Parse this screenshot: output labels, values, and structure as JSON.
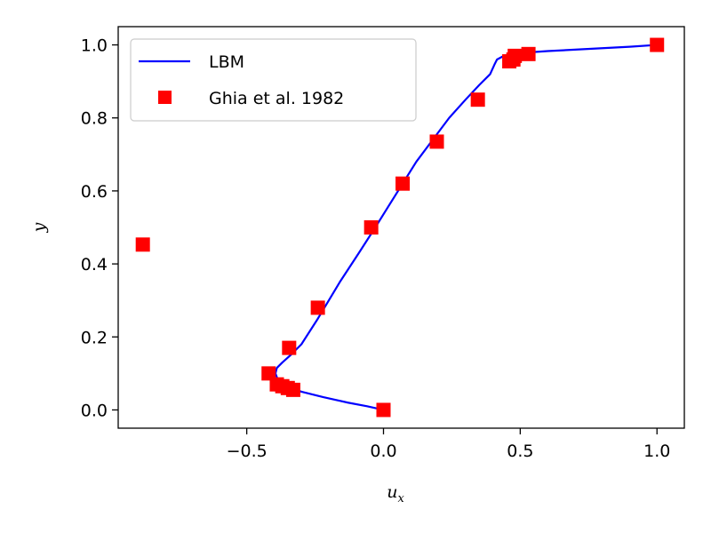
{
  "chart_data": {
    "type": "scatter",
    "xlabel": "u",
    "xlabel_sub": "x",
    "ylabel": "y",
    "xlim": [
      -0.97,
      1.1
    ],
    "ylim": [
      -0.05,
      1.05
    ],
    "xticks": [
      -0.5,
      0.0,
      0.5,
      1.0
    ],
    "xtick_labels": [
      "−0.5",
      "0.0",
      "0.5",
      "1.0"
    ],
    "yticks": [
      0.0,
      0.2,
      0.4,
      0.6,
      0.8,
      1.0
    ],
    "ytick_labels": [
      "0.0",
      "0.2",
      "0.4",
      "0.6",
      "0.8",
      "1.0"
    ],
    "grid": false,
    "legend_position": "upper-left",
    "series": [
      {
        "name": "LBM",
        "kind": "line",
        "color": "#0000ff",
        "x": [
          0.0,
          -0.06,
          -0.13,
          -0.22,
          -0.3,
          -0.355,
          -0.385,
          -0.395,
          -0.39,
          -0.37,
          -0.34,
          -0.3,
          -0.24,
          -0.16,
          -0.09,
          -0.03,
          0.02,
          0.07,
          0.12,
          0.18,
          0.24,
          0.3,
          0.35,
          0.39,
          0.405,
          0.415,
          0.44,
          0.5,
          0.6,
          0.7,
          0.8,
          0.9,
          1.0
        ],
        "y": [
          0.0,
          0.01,
          0.02,
          0.035,
          0.05,
          0.065,
          0.08,
          0.1,
          0.115,
          0.13,
          0.15,
          0.18,
          0.25,
          0.35,
          0.43,
          0.5,
          0.56,
          0.62,
          0.68,
          0.74,
          0.8,
          0.85,
          0.89,
          0.92,
          0.945,
          0.96,
          0.97,
          0.978,
          0.983,
          0.987,
          0.991,
          0.995,
          1.0
        ]
      },
      {
        "name": "Ghia et al. 1982",
        "kind": "marker",
        "color": "#ff0000",
        "x": [
          0.0,
          -0.33,
          -0.35,
          -0.37,
          -0.39,
          -0.42,
          -0.345,
          -0.24,
          -0.045,
          0.07,
          0.195,
          0.345,
          0.46,
          0.475,
          0.48,
          0.53,
          1.0,
          -0.88
        ],
        "y": [
          0.0,
          0.055,
          0.06,
          0.065,
          0.07,
          0.1,
          0.17,
          0.28,
          0.5,
          0.62,
          0.735,
          0.85,
          0.955,
          0.96,
          0.97,
          0.975,
          1.0,
          0.453
        ]
      }
    ]
  }
}
